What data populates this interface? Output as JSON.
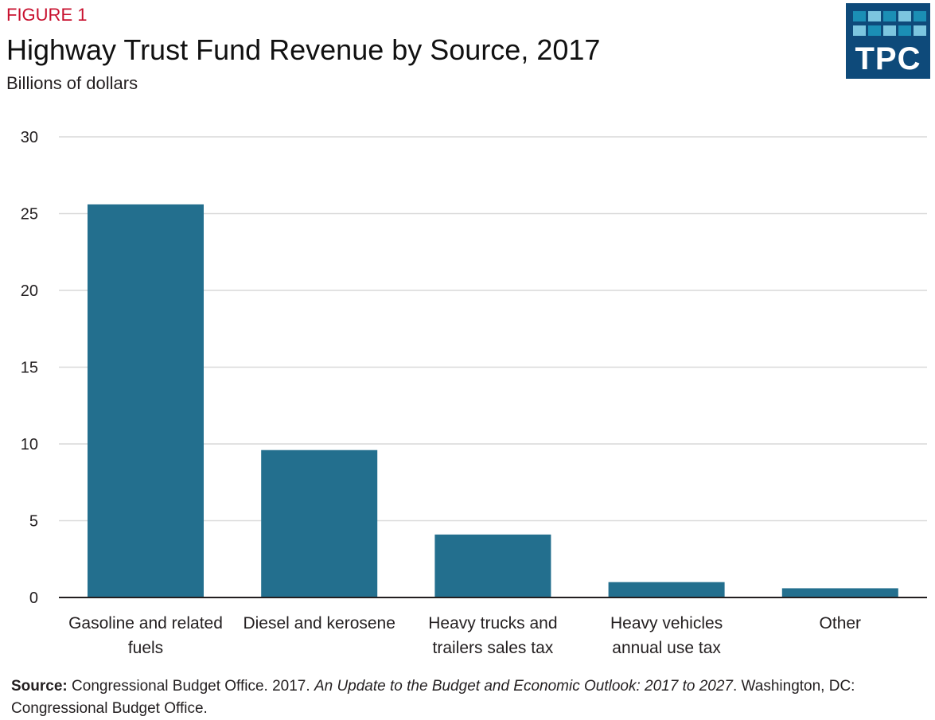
{
  "header": {
    "figure_label": "FIGURE 1",
    "title": "Highway Trust Fund Revenue by Source, 2017",
    "subtitle": "Billions of dollars"
  },
  "logo": {
    "text": "TPC",
    "icon": "tpc-logo-icon",
    "bg_color": "#0e4a7a"
  },
  "colors": {
    "bar": "#236f8e",
    "grid": "#d9d9d9",
    "axis": "#231f20",
    "label_red": "#c8102e"
  },
  "chart_data": {
    "type": "bar",
    "title": "Highway Trust Fund Revenue by Source, 2017",
    "ylabel": "Billions of dollars",
    "xlabel": "",
    "ylim": [
      0,
      30
    ],
    "yticks": [
      0,
      5,
      10,
      15,
      20,
      25,
      30
    ],
    "grid": true,
    "categories": [
      [
        "Gasoline and related",
        "fuels"
      ],
      [
        "Diesel and kerosene"
      ],
      [
        "Heavy trucks and",
        "trailers sales tax"
      ],
      [
        "Heavy vehicles",
        "annual use tax"
      ],
      [
        "Other"
      ]
    ],
    "values": [
      25.6,
      9.6,
      4.1,
      1.0,
      0.6
    ]
  },
  "source": {
    "label": "Source:",
    "text1": " Congressional Budget Office. 2017. ",
    "italic": "An Update to the Budget and Economic Outlook: 2017 to 2027",
    "text2": ". Washington, DC: Congressional Budget Office."
  }
}
